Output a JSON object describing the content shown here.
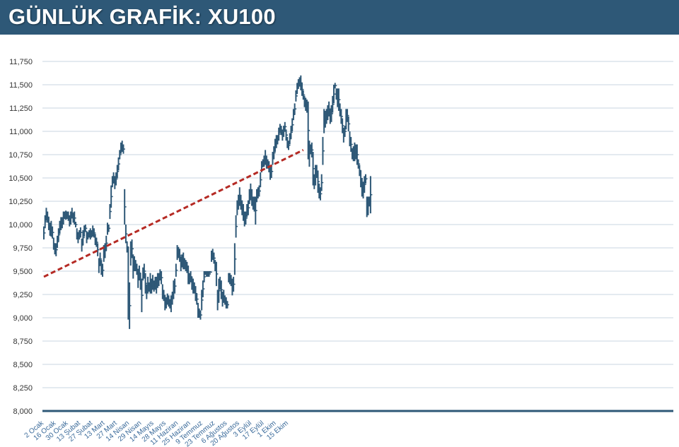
{
  "header": {
    "title": "GÜNLÜK GRAFİK: XU100"
  },
  "colors": {
    "header_bg": "#2e5877",
    "bars": "#2e5877",
    "trendline": "#b52a24",
    "grid": "#c9d6e0",
    "axis": "#2e5877"
  },
  "chart_data": {
    "type": "ohlc",
    "title": "GÜNLÜK GRAFİK: XU100",
    "ylim": [
      8000,
      11750
    ],
    "yticks": [
      "8,000",
      "8,250",
      "8,500",
      "8,750",
      "9,000",
      "9,250",
      "9,500",
      "9,750",
      "10,000",
      "10,250",
      "10,500",
      "10,750",
      "11,000",
      "11,250",
      "11,500",
      "11,750"
    ],
    "ytick_values": [
      8000,
      8250,
      8500,
      8750,
      9000,
      9250,
      9500,
      9750,
      10000,
      10250,
      10500,
      10750,
      11000,
      11250,
      11500,
      11750
    ],
    "xlabels": [
      "2 Ocak",
      "16 Ocak",
      "30 Ocak",
      "13 Şubat",
      "27 Şubat",
      "13 Mart",
      "27 Mart",
      "14 Nisan",
      "29 Nisan",
      "14 Mayıs",
      "28 Mayıs",
      "11 Haziran",
      "25 Haziran",
      "9 Temmuz",
      "23 Temmuz",
      "6 Ağustos",
      "20 Ağustos",
      "3 Eylül",
      "17 Eylül",
      "1 Ekim",
      "15 Ekim"
    ],
    "xlabel_index": [
      0,
      10,
      20,
      30,
      40,
      50,
      60,
      70,
      80,
      90,
      100,
      110,
      120,
      130,
      140,
      150,
      160,
      170,
      180,
      190,
      200
    ],
    "grid": true,
    "trendline": {
      "start": [
        0,
        9440
      ],
      "end": [
        212,
        10800
      ]
    },
    "series": [
      {
        "values": [
          [
            9840,
            9980
          ],
          [
            9960,
            10100
          ],
          [
            10040,
            10180
          ],
          [
            10020,
            10140
          ],
          [
            9940,
            10080
          ],
          [
            9880,
            10020
          ],
          [
            9870,
            10040
          ],
          [
            9850,
            9980
          ],
          [
            9730,
            9860
          ],
          [
            9680,
            9800
          ],
          [
            9660,
            9800
          ],
          [
            9750,
            9880
          ],
          [
            9820,
            9960
          ],
          [
            9900,
            10040
          ],
          [
            9940,
            10080
          ],
          [
            9960,
            10080
          ],
          [
            10000,
            10140
          ],
          [
            10060,
            10140
          ],
          [
            10050,
            10150
          ],
          [
            10060,
            10140
          ],
          [
            10040,
            10140
          ],
          [
            9980,
            10100
          ],
          [
            10000,
            10140
          ],
          [
            10070,
            10180
          ],
          [
            10020,
            10120
          ],
          [
            10000,
            10140
          ],
          [
            9970,
            10030
          ],
          [
            9840,
            9960
          ],
          [
            9800,
            9920
          ],
          [
            9840,
            9940
          ],
          [
            9860,
            9970
          ],
          [
            9710,
            9850
          ],
          [
            9780,
            9940
          ],
          [
            9870,
            9990
          ],
          [
            9920,
            10000
          ],
          [
            9800,
            9930
          ],
          [
            9840,
            9920
          ],
          [
            9860,
            9940
          ],
          [
            9840,
            9960
          ],
          [
            9860,
            9940
          ],
          [
            9870,
            9990
          ],
          [
            9860,
            9960
          ],
          [
            9780,
            9900
          ],
          [
            9760,
            9860
          ],
          [
            9660,
            9800
          ],
          [
            9480,
            9640
          ],
          [
            9560,
            9700
          ],
          [
            9460,
            9620
          ],
          [
            9440,
            9580
          ],
          [
            9600,
            9780
          ],
          [
            9640,
            9800
          ],
          [
            9720,
            9880
          ],
          [
            9890,
            10020
          ],
          [
            9920,
            10000
          ],
          [
            10060,
            10220
          ],
          [
            10180,
            10420
          ],
          [
            10400,
            10520
          ],
          [
            10440,
            10560
          ],
          [
            10380,
            10520
          ],
          [
            10420,
            10560
          ],
          [
            10500,
            10640
          ],
          [
            10580,
            10720
          ],
          [
            10700,
            10800
          ],
          [
            10760,
            10880
          ],
          [
            10780,
            10900
          ],
          [
            10760,
            10860
          ],
          [
            10000,
            10380
          ],
          [
            9800,
            10000
          ],
          [
            9700,
            9820
          ],
          [
            8980,
            9760
          ],
          [
            8880,
            9380
          ],
          [
            9560,
            9820
          ],
          [
            9640,
            9840
          ],
          [
            9420,
            9680
          ],
          [
            9500,
            9660
          ],
          [
            9500,
            9620
          ],
          [
            9460,
            9580
          ],
          [
            9320,
            9520
          ],
          [
            9400,
            9560
          ],
          [
            9300,
            9480
          ],
          [
            9060,
            9420
          ],
          [
            9400,
            9540
          ],
          [
            9420,
            9580
          ],
          [
            9260,
            9480
          ],
          [
            9200,
            9360
          ],
          [
            9260,
            9440
          ],
          [
            9280,
            9380
          ],
          [
            9260,
            9480
          ],
          [
            9260,
            9420
          ],
          [
            9300,
            9460
          ],
          [
            9280,
            9400
          ],
          [
            9300,
            9440
          ],
          [
            9260,
            9440
          ],
          [
            9320,
            9480
          ],
          [
            9340,
            9480
          ],
          [
            9400,
            9520
          ],
          [
            9360,
            9500
          ],
          [
            9200,
            9360
          ],
          [
            9180,
            9300
          ],
          [
            9080,
            9240
          ],
          [
            9100,
            9220
          ],
          [
            9140,
            9260
          ],
          [
            9120,
            9240
          ],
          [
            9100,
            9200
          ],
          [
            9060,
            9240
          ],
          [
            9140,
            9280
          ],
          [
            9200,
            9400
          ],
          [
            9260,
            9420
          ],
          [
            9440,
            9580
          ],
          [
            9620,
            9780
          ],
          [
            9640,
            9760
          ],
          [
            9600,
            9740
          ],
          [
            9500,
            9660
          ],
          [
            9540,
            9680
          ],
          [
            9520,
            9700
          ],
          [
            9520,
            9640
          ],
          [
            9500,
            9620
          ],
          [
            9480,
            9600
          ],
          [
            9360,
            9560
          ],
          [
            9360,
            9480
          ],
          [
            9380,
            9500
          ],
          [
            9300,
            9440
          ],
          [
            9260,
            9420
          ],
          [
            9260,
            9380
          ],
          [
            9180,
            9340
          ],
          [
            9140,
            9260
          ],
          [
            9000,
            9160
          ],
          [
            9000,
            9100
          ],
          [
            8980,
            9080
          ],
          [
            9080,
            9300
          ],
          [
            9220,
            9400
          ],
          [
            9380,
            9500
          ],
          [
            9460,
            9500
          ],
          [
            9440,
            9500
          ],
          [
            9440,
            9500
          ],
          [
            9440,
            9500
          ],
          [
            9480,
            9500
          ],
          [
            9600,
            9720
          ],
          [
            9620,
            9740
          ],
          [
            9580,
            9700
          ],
          [
            9500,
            9620
          ],
          [
            9340,
            9600
          ],
          [
            9080,
            9300
          ],
          [
            9160,
            9420
          ],
          [
            9300,
            9440
          ],
          [
            9200,
            9400
          ],
          [
            9120,
            9280
          ],
          [
            9160,
            9300
          ],
          [
            9140,
            9240
          ],
          [
            9100,
            9220
          ],
          [
            9100,
            9180
          ],
          [
            9380,
            9480
          ],
          [
            9360,
            9480
          ],
          [
            9340,
            9460
          ],
          [
            9240,
            9420
          ],
          [
            9280,
            9440
          ],
          [
            9460,
            9800
          ],
          [
            9860,
            10100
          ],
          [
            10100,
            10260
          ],
          [
            10160,
            10320
          ],
          [
            10200,
            10400
          ],
          [
            10160,
            10320
          ],
          [
            10100,
            10260
          ],
          [
            10040,
            10220
          ],
          [
            9980,
            10140
          ],
          [
            10000,
            10140
          ],
          [
            10080,
            10220
          ],
          [
            10100,
            10260
          ],
          [
            10220,
            10380
          ],
          [
            10260,
            10440
          ],
          [
            10200,
            10380
          ],
          [
            10160,
            10300
          ],
          [
            10140,
            10300
          ],
          [
            10000,
            10300
          ],
          [
            10240,
            10380
          ],
          [
            10280,
            10400
          ],
          [
            10300,
            10420
          ],
          [
            10400,
            10560
          ],
          [
            10560,
            10680
          ],
          [
            10620,
            10700
          ],
          [
            10620,
            10740
          ],
          [
            10640,
            10800
          ],
          [
            10600,
            10740
          ],
          [
            10600,
            10700
          ],
          [
            10560,
            10680
          ],
          [
            10480,
            10620
          ],
          [
            10500,
            10640
          ],
          [
            10640,
            10780
          ],
          [
            10700,
            10840
          ],
          [
            10780,
            10920
          ],
          [
            10820,
            10960
          ],
          [
            10860,
            10960
          ],
          [
            10900,
            11040
          ],
          [
            10980,
            11080
          ],
          [
            10960,
            11060
          ],
          [
            10900,
            11020
          ],
          [
            10940,
            11060
          ],
          [
            11000,
            11100
          ],
          [
            10900,
            11020
          ],
          [
            10820,
            10940
          ],
          [
            10800,
            10900
          ],
          [
            10860,
            10980
          ],
          [
            10920,
            11060
          ],
          [
            11000,
            11140
          ],
          [
            11120,
            11240
          ],
          [
            11180,
            11300
          ],
          [
            11320,
            11440
          ],
          [
            11400,
            11520
          ],
          [
            11460,
            11560
          ],
          [
            11480,
            11580
          ],
          [
            11440,
            11600
          ],
          [
            11380,
            11520
          ],
          [
            11340,
            11440
          ],
          [
            11260,
            11380
          ],
          [
            11220,
            11360
          ],
          [
            11200,
            11340
          ],
          [
            10700,
            11320
          ],
          [
            10620,
            10900
          ],
          [
            10760,
            10860
          ],
          [
            10720,
            10880
          ],
          [
            10420,
            10780
          ],
          [
            10380,
            10540
          ],
          [
            10420,
            10640
          ],
          [
            10500,
            10640
          ],
          [
            10340,
            10580
          ],
          [
            10280,
            10440
          ],
          [
            10260,
            10400
          ],
          [
            10360,
            10540
          ],
          [
            10640,
            10940
          ],
          [
            10980,
            11240
          ],
          [
            11040,
            11220
          ],
          [
            11080,
            11240
          ],
          [
            11120,
            11280
          ],
          [
            11160,
            11320
          ],
          [
            11080,
            11240
          ],
          [
            11100,
            11280
          ],
          [
            11200,
            11380
          ],
          [
            11300,
            11500
          ],
          [
            11460,
            11520
          ],
          [
            11340,
            11460
          ],
          [
            11260,
            11460
          ],
          [
            11220,
            11460
          ],
          [
            11160,
            11300
          ],
          [
            11080,
            11240
          ],
          [
            10980,
            11140
          ],
          [
            10880,
            11040
          ],
          [
            10940,
            11060
          ],
          [
            11020,
            11240
          ],
          [
            11100,
            11240
          ],
          [
            11000,
            11160
          ],
          [
            10840,
            11000
          ],
          [
            10780,
            10940
          ],
          [
            10700,
            10820
          ],
          [
            10680,
            10840
          ],
          [
            10680,
            10880
          ],
          [
            10700,
            10860
          ],
          [
            10640,
            10860
          ],
          [
            10600,
            10700
          ],
          [
            10520,
            10640
          ],
          [
            10400,
            10580
          ],
          [
            10300,
            10500
          ],
          [
            10280,
            10460
          ],
          [
            10340,
            10520
          ],
          [
            10440,
            10540
          ],
          [
            10080,
            10300
          ],
          [
            10100,
            10300
          ],
          [
            10200,
            10300
          ],
          [
            10120,
            10520
          ]
        ]
      }
    ]
  }
}
